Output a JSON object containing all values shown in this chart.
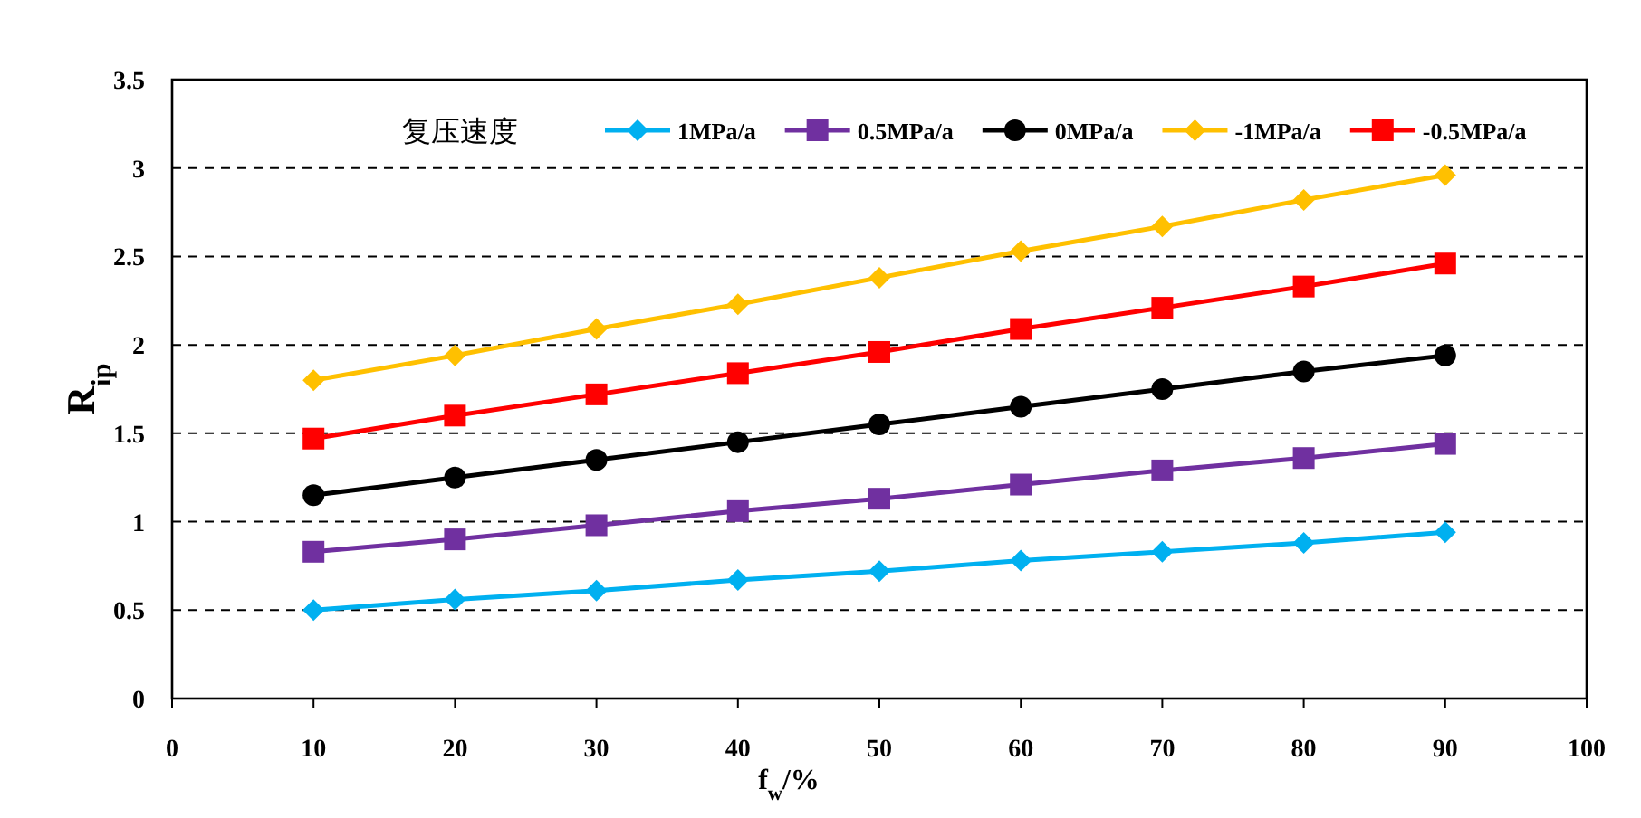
{
  "chart_data": {
    "type": "line",
    "xlabel": "f$_{w}$/%",
    "ylabel": "R$_{ip}$",
    "legend_title": "复压速度",
    "x": [
      10,
      20,
      30,
      40,
      50,
      60,
      70,
      80,
      90
    ],
    "xlim": [
      0,
      100
    ],
    "xticks": [
      0,
      10,
      20,
      30,
      40,
      50,
      60,
      70,
      80,
      90,
      100
    ],
    "ylim": [
      0,
      3.5
    ],
    "yticks": [
      0,
      0.5,
      1,
      1.5,
      2,
      2.5,
      3,
      3.5
    ],
    "grid": "y",
    "legend": "top",
    "line_style": "solid",
    "series": [
      {
        "name": "1MPa/a",
        "color": "#00b0f0",
        "marker": "diamond",
        "values": [
          0.5,
          0.56,
          0.61,
          0.67,
          0.72,
          0.78,
          0.83,
          0.88,
          0.94
        ]
      },
      {
        "name": "0.5MPa/a",
        "color": "#7030a0",
        "marker": "square",
        "values": [
          0.83,
          0.9,
          0.98,
          1.06,
          1.13,
          1.21,
          1.29,
          1.36,
          1.44
        ]
      },
      {
        "name": "0MPa/a",
        "color": "#000000",
        "marker": "circle",
        "values": [
          1.15,
          1.25,
          1.35,
          1.45,
          1.55,
          1.65,
          1.75,
          1.85,
          1.94
        ]
      },
      {
        "name": "-1MPa/a",
        "color": "#ffc000",
        "marker": "diamond",
        "values": [
          1.8,
          1.94,
          2.09,
          2.23,
          2.38,
          2.53,
          2.67,
          2.82,
          2.96
        ]
      },
      {
        "name": "-0.5MPa/a",
        "color": "#ff0000",
        "marker": "square",
        "values": [
          1.47,
          1.6,
          1.72,
          1.84,
          1.96,
          2.09,
          2.21,
          2.33,
          2.46
        ]
      }
    ]
  }
}
